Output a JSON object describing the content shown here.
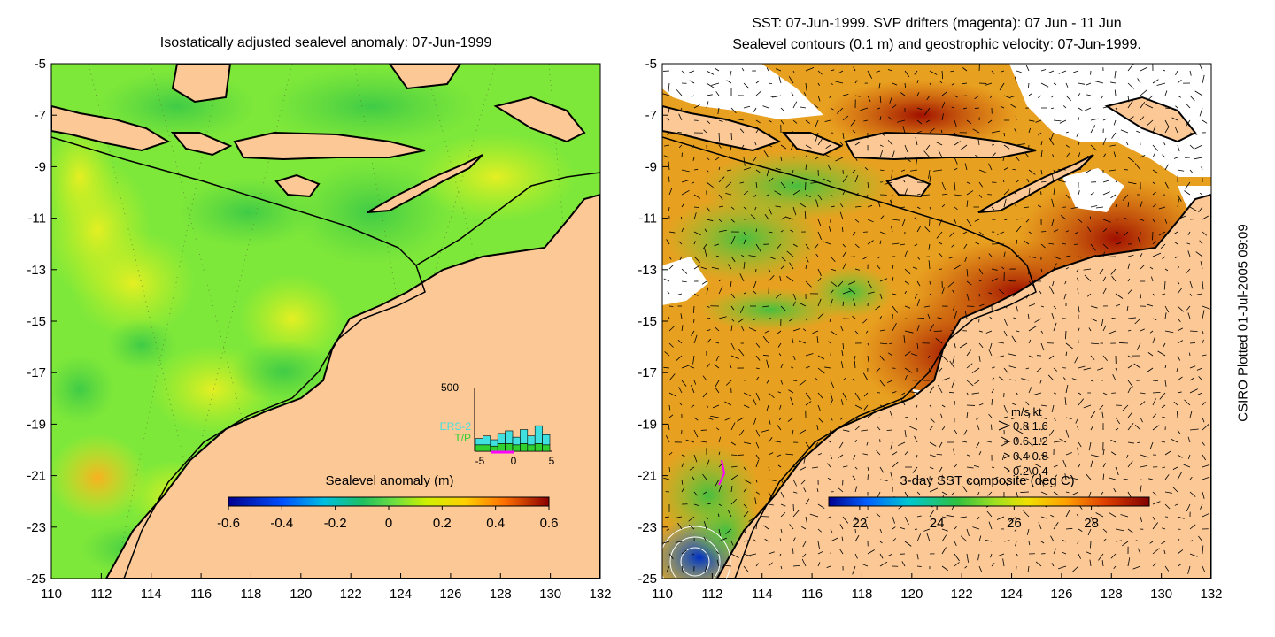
{
  "left_panel": {
    "title": "Isostatically adjusted sealevel anomaly: 07-Jun-1999",
    "colorbar": {
      "label": "Sealevel anomaly (m)",
      "ticks": [
        "-0.6",
        "-0.4",
        "-0.2",
        "0",
        "0.2",
        "0.4",
        "0.6"
      ],
      "range": [
        -0.6,
        0.6
      ]
    },
    "inset": {
      "ymax_label": "500",
      "legend": [
        "ERS-2",
        "T/P"
      ],
      "xticks": [
        "-5",
        "0",
        "5"
      ],
      "ers2_color": "#40e0e0",
      "tp_color": "#30d030",
      "bars_ers2": [
        0.1,
        0.14,
        0.1,
        0.16,
        0.2,
        0.12,
        0.22,
        0.14,
        0.28,
        0.16
      ],
      "bars_tp": [
        0.1,
        0.1,
        0.08,
        0.12,
        0.12,
        0.1,
        0.12,
        0.1,
        0.12,
        0.1
      ]
    }
  },
  "right_panel": {
    "title_line1": "SST: 07-Jun-1999. SVP drifters (magenta): 07 Jun - 11 Jun",
    "title_line2": "Sealevel contours (0.1 m) and geostrophic velocity: 07-Jun-1999.",
    "colorbar": {
      "label": "3-day SST composite (deg C)",
      "ticks": [
        "22",
        "24",
        "26",
        "28"
      ],
      "range": [
        21.2,
        29.5
      ]
    },
    "speed_legend": {
      "header": "m/s  kt",
      "rows": [
        "0.8  1.6",
        "0.6  1.2",
        "0.4  0.8",
        "0.2  0.4"
      ]
    }
  },
  "axes": {
    "xticks": [
      "110",
      "112",
      "114",
      "116",
      "118",
      "120",
      "122",
      "124",
      "126",
      "128",
      "130",
      "132"
    ],
    "yticks": [
      "-5",
      "-7",
      "-9",
      "-11",
      "-13",
      "-15",
      "-17",
      "-19",
      "-21",
      "-23",
      "-25"
    ],
    "lon_range": [
      110,
      132
    ],
    "lat_range": [
      -25,
      -5
    ]
  },
  "credit": "CSIRO Plotted 01-Jul-2005 09:09",
  "colors": {
    "land": "#fbc896",
    "sla_base": "#7ee83a",
    "sst_base": "#e8a020"
  }
}
